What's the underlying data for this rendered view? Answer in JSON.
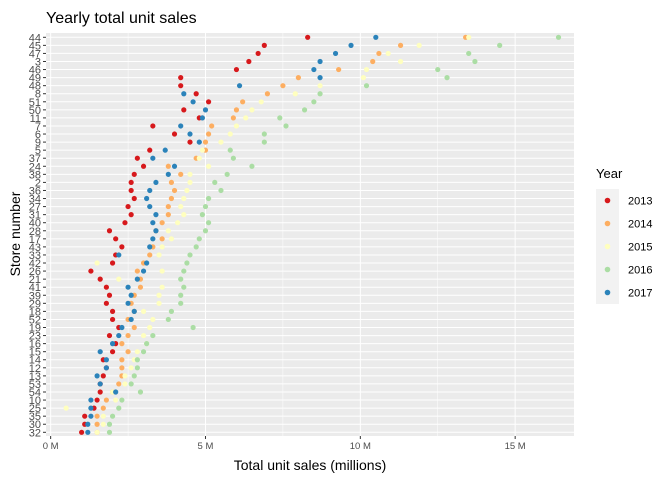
{
  "chart_data": {
    "type": "scatter",
    "title": "Yearly total unit sales",
    "xlabel": "Total unit sales (millions)",
    "ylabel": "Store number",
    "xlim": [
      -0.15,
      16.9
    ],
    "x_ticks": [
      0,
      5,
      10,
      15
    ],
    "x_tick_labels": [
      "0 M",
      "5 M",
      "10 M",
      "15 M"
    ],
    "grid": true,
    "legend_position": "right",
    "legend_title": "Year",
    "categories": [
      "44",
      "45",
      "47",
      "3",
      "46",
      "49",
      "48",
      "8",
      "51",
      "50",
      "11",
      "7",
      "6",
      "9",
      "5",
      "37",
      "24",
      "38",
      "2",
      "36",
      "34",
      "27",
      "31",
      "40",
      "28",
      "17",
      "43",
      "33",
      "42",
      "26",
      "21",
      "41",
      "39",
      "29",
      "18",
      "52",
      "19",
      "23",
      "16",
      "15",
      "14",
      "12",
      "13",
      "53",
      "54",
      "10",
      "25",
      "35",
      "30",
      "32"
    ],
    "series": [
      {
        "name": "2013",
        "color": "#d7191c",
        "values": [
          8.3,
          6.9,
          6.7,
          6.4,
          6.0,
          4.2,
          4.2,
          4.7,
          5.1,
          4.3,
          4.8,
          3.3,
          4.0,
          4.5,
          3.2,
          2.8,
          3.0,
          2.7,
          2.6,
          2.6,
          2.7,
          2.5,
          2.6,
          2.4,
          1.9,
          2.1,
          2.3,
          2.1,
          2.0,
          1.3,
          1.6,
          1.8,
          1.9,
          1.8,
          2.0,
          2.0,
          2.2,
          1.9,
          2.1,
          2.0,
          1.7,
          1.8,
          1.7,
          1.6,
          1.6,
          1.5,
          1.4,
          1.1,
          1.1,
          1.0
        ]
      },
      {
        "name": "2014",
        "color": "#fdae61",
        "values": [
          13.4,
          11.3,
          10.6,
          10.4,
          9.3,
          8.0,
          7.5,
          7.0,
          6.2,
          6.0,
          5.9,
          5.2,
          5.1,
          5.0,
          5.0,
          4.7,
          3.8,
          4.2,
          3.9,
          4.0,
          3.9,
          3.8,
          3.8,
          3.6,
          3.4,
          3.6,
          3.3,
          3.2,
          3.0,
          2.8,
          2.9,
          2.9,
          2.7,
          2.6,
          2.7,
          2.5,
          2.7,
          2.5,
          2.3,
          2.5,
          2.3,
          2.3,
          2.3,
          2.2,
          2.0,
          1.8,
          1.7,
          1.5,
          1.5,
          1.5
        ]
      },
      {
        "name": "2015",
        "color": "#ffffbf",
        "values": [
          13.5,
          11.9,
          10.9,
          11.3,
          10.2,
          10.1,
          8.7,
          7.9,
          6.8,
          6.5,
          6.3,
          6.0,
          5.8,
          5.5,
          4.9,
          4.8,
          5.1,
          4.5,
          4.5,
          4.4,
          4.3,
          4.2,
          4.3,
          4.1,
          3.8,
          3.9,
          3.6,
          3.5,
          1.5,
          3.6,
          2.2,
          3.6,
          3.5,
          3.5,
          3.0,
          3.3,
          3.2,
          3.0,
          3.1,
          2.8,
          2.7,
          2.6,
          2.4,
          2.4,
          2.0,
          2.1,
          0.5,
          1.7,
          1.7,
          1.5
        ]
      },
      {
        "name": "2016",
        "color": "#abdda4",
        "values": [
          16.4,
          14.5,
          13.5,
          13.7,
          12.5,
          12.8,
          10.2,
          8.7,
          8.5,
          8.2,
          7.4,
          7.6,
          6.9,
          6.9,
          5.8,
          5.9,
          6.5,
          5.7,
          5.3,
          5.5,
          5.1,
          5.0,
          4.9,
          5.1,
          5.0,
          4.8,
          4.7,
          4.5,
          4.4,
          4.3,
          4.2,
          4.3,
          4.2,
          4.2,
          3.9,
          3.8,
          4.6,
          3.3,
          3.1,
          3.0,
          2.8,
          2.8,
          2.7,
          2.6,
          2.9,
          2.3,
          2.2,
          2.0,
          1.9,
          1.9
        ]
      },
      {
        "name": "2017",
        "color": "#2b83ba",
        "values": [
          10.5,
          9.7,
          9.2,
          8.7,
          8.5,
          8.7,
          6.1,
          4.3,
          4.6,
          5.0,
          4.9,
          4.2,
          4.5,
          4.8,
          3.7,
          3.3,
          4.0,
          3.8,
          3.4,
          3.2,
          3.1,
          3.2,
          3.4,
          3.3,
          3.4,
          3.3,
          3.2,
          2.2,
          3.1,
          3.0,
          2.8,
          2.5,
          2.6,
          2.5,
          2.7,
          2.6,
          2.3,
          2.2,
          2.0,
          1.6,
          1.8,
          1.8,
          1.5,
          1.6,
          2.1,
          1.3,
          1.3,
          1.3,
          1.2,
          1.2
        ]
      }
    ]
  }
}
